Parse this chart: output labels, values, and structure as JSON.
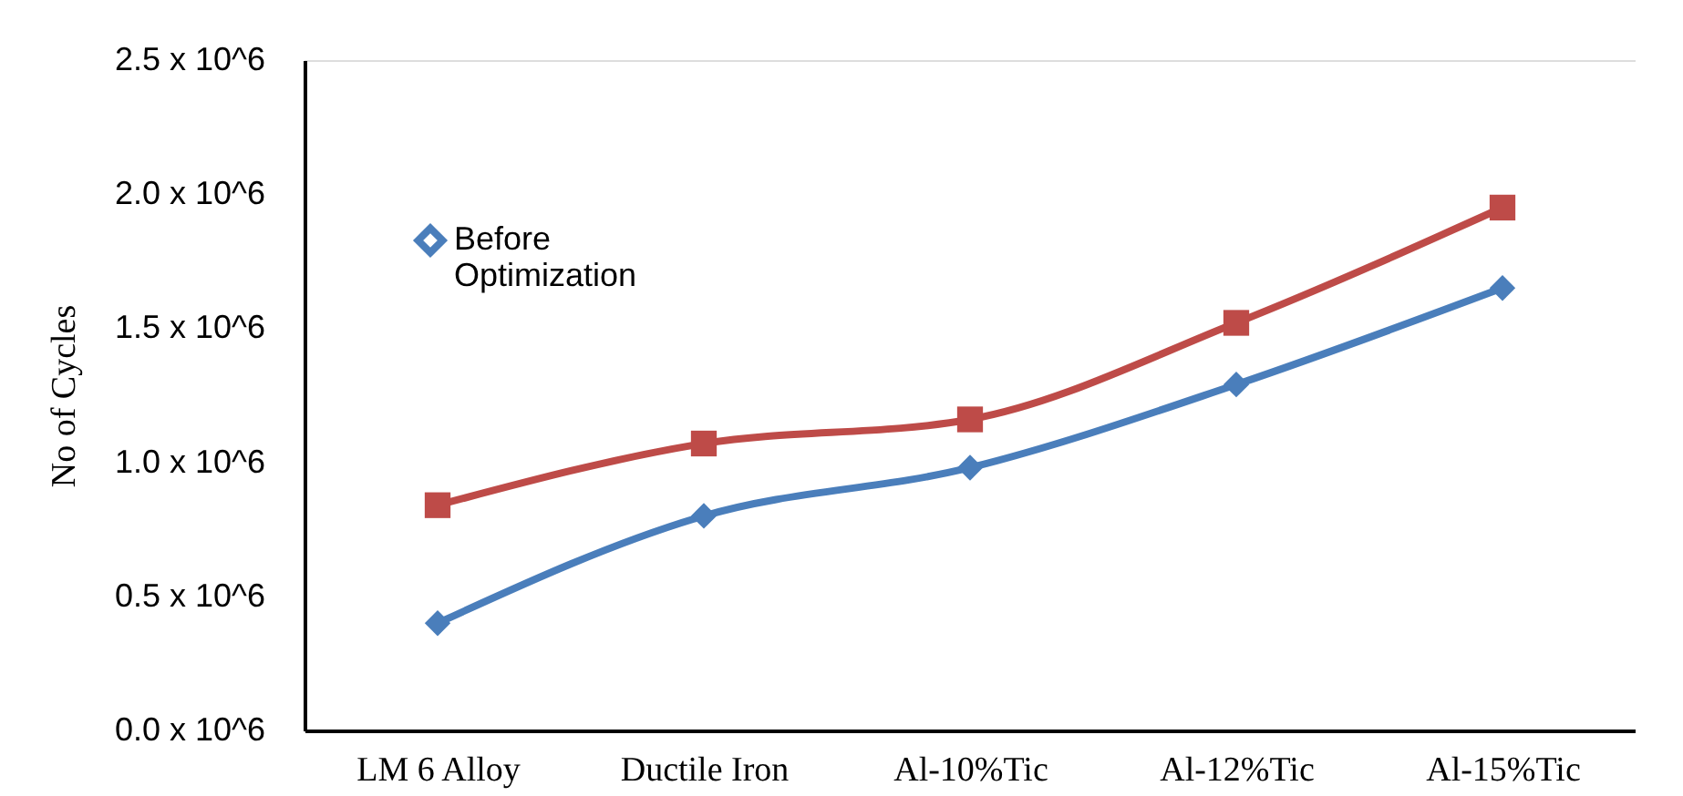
{
  "chart_data": {
    "type": "line",
    "ylabel": "No of Cycles",
    "categories": [
      "LM 6 Alloy",
      "Ductile Iron",
      "Al-10%Tic",
      "Al-12%Tic",
      "Al-15%Tic"
    ],
    "series": [
      {
        "name": "Before Optimization",
        "color": "#4a7ebb",
        "marker": "diamond",
        "values": [
          400000,
          800000,
          980000,
          1290000,
          1650000
        ]
      },
      {
        "color": "#be4b48",
        "marker": "square",
        "values": [
          840000,
          1070000,
          1160000,
          1520000,
          1950000
        ]
      }
    ],
    "ylim": [
      0,
      2500000
    ],
    "yticks": [
      {
        "value": 0,
        "label": "0.0 x 10^6"
      },
      {
        "value": 500000,
        "label": "0.5 x 10^6"
      },
      {
        "value": 1000000,
        "label": "1.0 x 10^6"
      },
      {
        "value": 1500000,
        "label": "1.5 x 10^6"
      },
      {
        "value": 2000000,
        "label": "2.0 x 10^6"
      },
      {
        "value": 2500000,
        "label": "2.5 x 10^6"
      }
    ],
    "grid": false,
    "legend": "top left",
    "line_style": "solid"
  }
}
